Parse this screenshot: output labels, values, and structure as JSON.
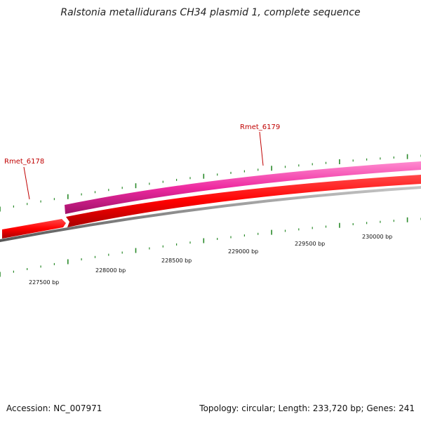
{
  "title": "Ralstonia metallidurans CH34 plasmid 1, complete sequence",
  "footer": {
    "accession": "Accession: NC_007971",
    "topology_info": "Topology: circular; Length: 233,720 bp; Genes: 241"
  },
  "genes": [
    {
      "name": "Rmet_6178"
    },
    {
      "name": "Rmet_6179"
    }
  ],
  "position_labels": [
    "227500 bp",
    "228000 bp",
    "228500 bp",
    "229000 bp",
    "229500 bp",
    "230000 bp"
  ],
  "colors": {
    "forward_strand": "#e0208c",
    "reverse_strand": "#e00000",
    "backbone": "#8c8c8c",
    "tick": "#2a8a2a",
    "gene_label": "#c00000"
  }
}
